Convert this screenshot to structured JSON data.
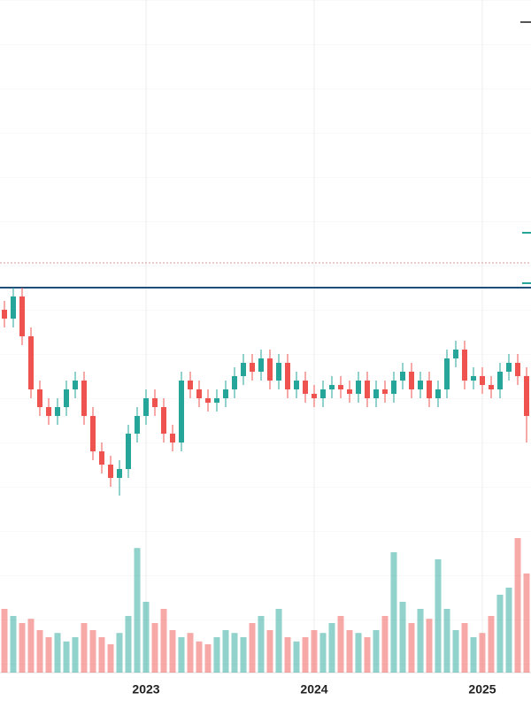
{
  "chart_data": {
    "type": "candlestick",
    "categories": [
      null,
      null,
      null,
      null,
      null,
      null,
      null,
      null,
      null,
      null,
      null,
      null,
      null,
      null,
      null,
      null,
      "2023",
      null,
      null,
      null,
      null,
      null,
      null,
      null,
      null,
      null,
      null,
      null,
      null,
      null,
      null,
      null,
      null,
      null,
      null,
      "2024",
      null,
      null,
      null,
      null,
      null,
      null,
      null,
      null,
      null,
      null,
      null,
      null,
      null,
      null,
      null,
      null,
      null,
      null,
      "2025",
      null,
      null,
      null,
      null,
      null
    ],
    "open": [
      82,
      80,
      85,
      76,
      64,
      60,
      58,
      60,
      64,
      66,
      58,
      50,
      47,
      44,
      46,
      54,
      58,
      62,
      60,
      54,
      52,
      66,
      64,
      62,
      61,
      62,
      64,
      67,
      70,
      68,
      71,
      66,
      70,
      64,
      66,
      63,
      62,
      64,
      65,
      64,
      63,
      66,
      62,
      64,
      63,
      66,
      68,
      64,
      66,
      62,
      64,
      71,
      73,
      66,
      67,
      65,
      64,
      68,
      70,
      67
    ],
    "high": [
      84,
      87,
      87,
      78,
      66,
      62,
      62,
      66,
      68,
      68,
      60,
      52,
      49,
      48,
      56,
      60,
      64,
      64,
      62,
      56,
      68,
      68,
      66,
      64,
      64,
      66,
      69,
      72,
      72,
      73,
      73,
      72,
      72,
      68,
      68,
      65,
      66,
      67,
      67,
      66,
      68,
      68,
      66,
      66,
      68,
      70,
      70,
      68,
      68,
      66,
      73,
      75,
      75,
      69,
      69,
      67,
      70,
      72,
      72,
      69
    ],
    "low": [
      78,
      78,
      74,
      62,
      58,
      56,
      56,
      58,
      62,
      56,
      48,
      45,
      42,
      40,
      44,
      52,
      56,
      58,
      52,
      50,
      50,
      62,
      60,
      59,
      59,
      60,
      62,
      65,
      66,
      66,
      64,
      64,
      62,
      62,
      61,
      60,
      60,
      62,
      62,
      61,
      61,
      60,
      60,
      61,
      61,
      64,
      62,
      62,
      60,
      60,
      62,
      69,
      64,
      64,
      63,
      62,
      62,
      66,
      65,
      52
    ],
    "close": [
      80,
      85,
      76,
      64,
      60,
      58,
      60,
      64,
      66,
      58,
      50,
      47,
      44,
      46,
      54,
      58,
      62,
      60,
      54,
      52,
      66,
      64,
      62,
      61,
      62,
      64,
      67,
      70,
      68,
      71,
      66,
      70,
      64,
      66,
      63,
      62,
      64,
      65,
      64,
      63,
      66,
      62,
      64,
      63,
      66,
      68,
      64,
      66,
      62,
      64,
      71,
      73,
      66,
      67,
      65,
      64,
      68,
      70,
      67,
      58
    ],
    "volume": [
      45,
      40,
      35,
      38,
      30,
      25,
      28,
      22,
      25,
      35,
      30,
      25,
      20,
      28,
      40,
      88,
      50,
      35,
      45,
      30,
      25,
      28,
      22,
      20,
      25,
      30,
      28,
      25,
      35,
      40,
      30,
      45,
      25,
      22,
      25,
      30,
      28,
      35,
      40,
      30,
      28,
      25,
      30,
      40,
      85,
      50,
      35,
      45,
      38,
      80,
      45,
      30,
      35,
      25,
      28,
      40,
      55,
      60,
      95,
      70
    ],
    "ylim": [
      0,
      152
    ],
    "volume_lim": [
      0,
      100
    ],
    "up_color": "#26a69a",
    "down_color": "#ef5350",
    "ref_lines": [
      {
        "value": 87,
        "color": "#1f4e79",
        "style": "solid"
      },
      {
        "value": 92.6,
        "color": "#d49a9a",
        "style": "dotted"
      }
    ],
    "grid": true
  }
}
